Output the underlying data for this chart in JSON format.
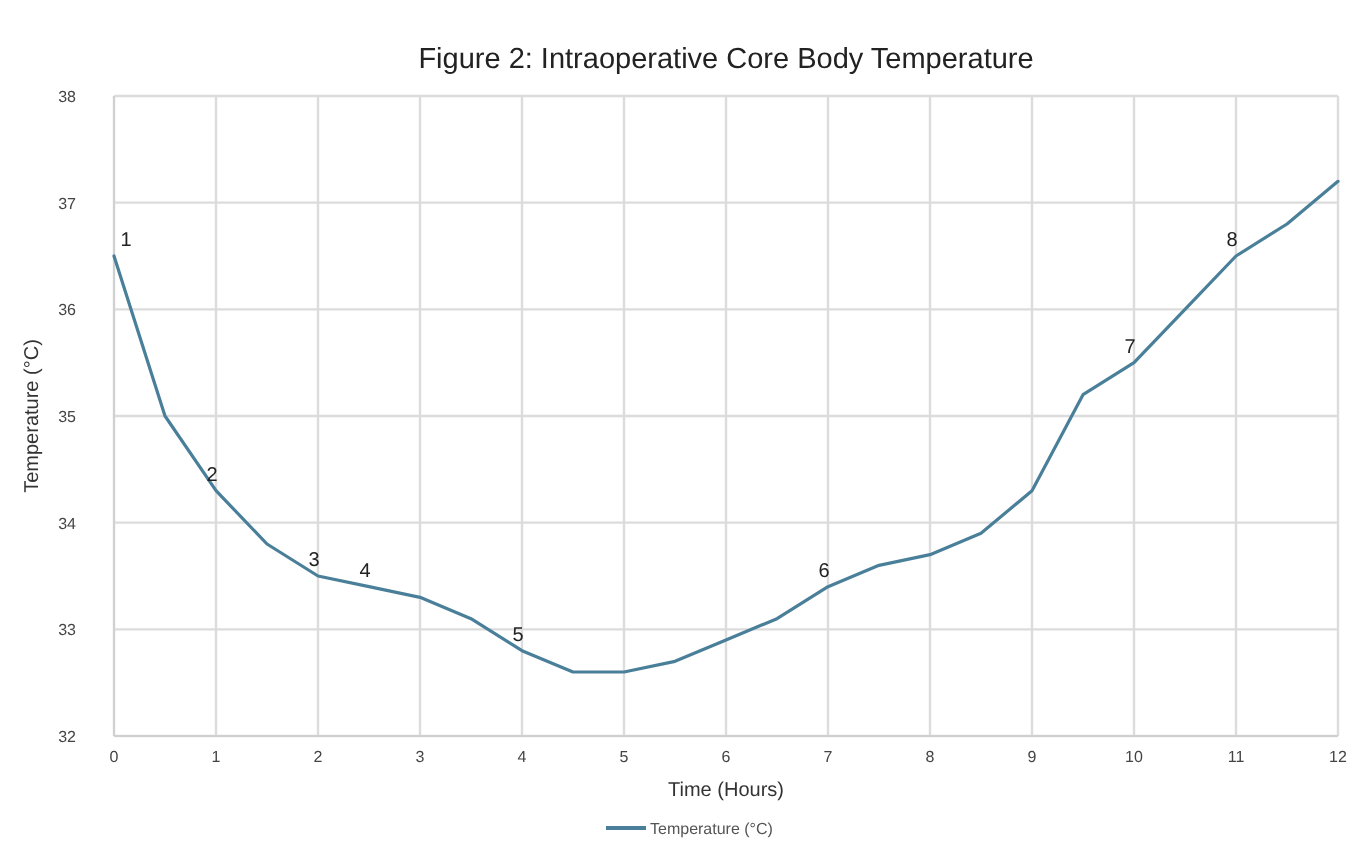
{
  "chart_data": {
    "type": "line",
    "title": "Figure 2: Intraoperative Core Body Temperature",
    "xlabel": "Time (Hours)",
    "ylabel": "Temperature (°C)",
    "x": [
      0,
      0.5,
      1,
      1.5,
      2,
      2.5,
      3,
      3.5,
      4,
      4.5,
      5,
      5.5,
      6,
      6.5,
      7,
      7.5,
      8,
      8.5,
      9,
      9.5,
      10,
      10.5,
      11,
      11.5,
      12
    ],
    "series": [
      {
        "name": "Temperature (°C)",
        "color": "#4a7f9a",
        "values": [
          36.5,
          35.0,
          34.3,
          33.8,
          33.5,
          33.4,
          33.3,
          33.1,
          32.8,
          32.6,
          32.6,
          32.7,
          32.9,
          33.1,
          33.4,
          33.6,
          33.7,
          33.9,
          34.3,
          35.2,
          35.5,
          36.0,
          36.5,
          36.8,
          37.2
        ]
      }
    ],
    "xlim": [
      0,
      12
    ],
    "xticks": [
      0,
      1,
      2,
      3,
      4,
      5,
      6,
      7,
      8,
      9,
      10,
      11,
      12
    ],
    "ylim": [
      32,
      38
    ],
    "yticks": [
      32,
      33,
      34,
      35,
      36,
      37,
      38
    ],
    "grid": true,
    "legend": "bottom",
    "marker": "none",
    "line_style": "solid",
    "annotations": [
      {
        "text": "1",
        "x": 0,
        "y": 36.5
      },
      {
        "text": "2",
        "x": 1,
        "y": 34.3
      },
      {
        "text": "3",
        "x": 2,
        "y": 33.5
      },
      {
        "text": "4",
        "x": 2.5,
        "y": 33.4
      },
      {
        "text": "5",
        "x": 4,
        "y": 32.8
      },
      {
        "text": "6",
        "x": 7,
        "y": 33.4
      },
      {
        "text": "7",
        "x": 10,
        "y": 35.5
      },
      {
        "text": "8",
        "x": 11,
        "y": 36.5
      }
    ]
  }
}
